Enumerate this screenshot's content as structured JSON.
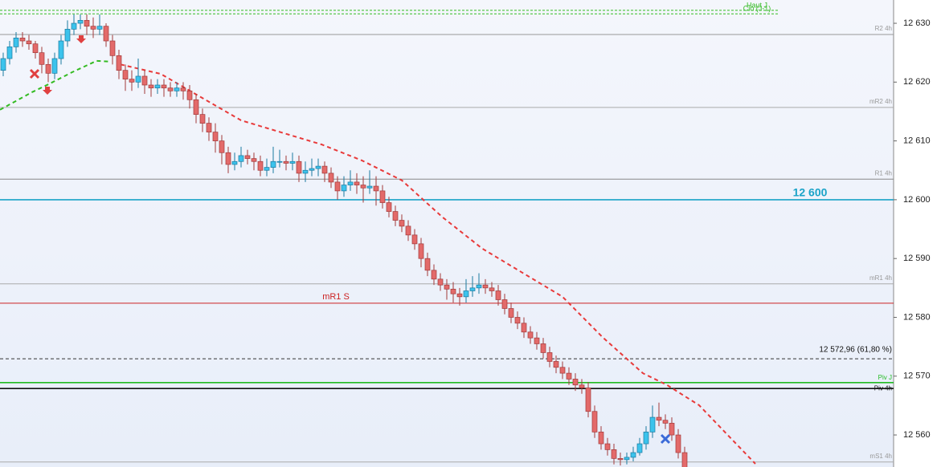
{
  "chart_data": {
    "type": "candlestick",
    "ylim": [
      12554.55,
      12633.96
    ],
    "yticks": [
      {
        "value": 12630,
        "label": "12 630"
      },
      {
        "value": 12620,
        "label": "12 620"
      },
      {
        "value": 12610,
        "label": "12 610"
      },
      {
        "value": 12600,
        "label": "12 600"
      },
      {
        "value": 12590,
        "label": "12 590"
      },
      {
        "value": 12580,
        "label": "12 580"
      },
      {
        "value": 12570,
        "label": "12 570"
      },
      {
        "value": 12560,
        "label": "12 560"
      }
    ],
    "xlim": [
      -0.5,
      145.5
    ],
    "up_color": "#3cc3ec",
    "down_color": "#e36a6a",
    "candles": [
      [
        12622,
        12625,
        12621,
        12624
      ],
      [
        12624,
        12627,
        12623,
        12626
      ],
      [
        12626,
        12628.5,
        12625,
        12627.5
      ],
      [
        12627.5,
        12628.5,
        12626,
        12627
      ],
      [
        12627,
        12628,
        12625.5,
        12626.5
      ],
      [
        12626.5,
        12627,
        12624,
        12625
      ],
      [
        12625,
        12626,
        12621.5,
        12623
      ],
      [
        12623,
        12624,
        12620,
        12621.5
      ],
      [
        12621.5,
        12625,
        12620.5,
        12624
      ],
      [
        12624,
        12628,
        12623,
        12627
      ],
      [
        12627,
        12630.5,
        12626,
        12629
      ],
      [
        12629,
        12631.5,
        12628,
        12630
      ],
      [
        12630,
        12631.5,
        12629,
        12630.5
      ],
      [
        12630.5,
        12631.5,
        12628,
        12629.5
      ],
      [
        12629.5,
        12631,
        12627.5,
        12629
      ],
      [
        12629,
        12631.5,
        12628,
        12629.5
      ],
      [
        12629.5,
        12630,
        12626,
        12627
      ],
      [
        12627,
        12628,
        12623,
        12624.5
      ],
      [
        12624.5,
        12625.5,
        12620.5,
        12622
      ],
      [
        12622,
        12623,
        12618.5,
        12620.5
      ],
      [
        12620.5,
        12622,
        12618.5,
        12620
      ],
      [
        12620,
        12624,
        12619,
        12621
      ],
      [
        12621,
        12622,
        12618,
        12619.5
      ],
      [
        12619.5,
        12620.5,
        12617.5,
        12619
      ],
      [
        12619,
        12620.5,
        12618,
        12619.5
      ],
      [
        12619.5,
        12620.5,
        12617.5,
        12619
      ],
      [
        12619,
        12620,
        12617.5,
        12618.5
      ],
      [
        12618.5,
        12620,
        12617.5,
        12619
      ],
      [
        12619,
        12620,
        12617,
        12618.5
      ],
      [
        12618.5,
        12619.5,
        12615.5,
        12617
      ],
      [
        12617,
        12618,
        12613,
        12614.5
      ],
      [
        12614.5,
        12615.5,
        12611.5,
        12613
      ],
      [
        12613,
        12614,
        12610,
        12611.5
      ],
      [
        12611.5,
        12613,
        12608,
        12610
      ],
      [
        12610,
        12611,
        12606,
        12608
      ],
      [
        12608,
        12609,
        12604.5,
        12606
      ],
      [
        12606,
        12608,
        12605,
        12606.5
      ],
      [
        12606.5,
        12609,
        12605.5,
        12607.5
      ],
      [
        12607.5,
        12608.5,
        12606,
        12607
      ],
      [
        12607,
        12608,
        12605,
        12606.5
      ],
      [
        12606.5,
        12607.5,
        12604,
        12605
      ],
      [
        12605,
        12607,
        12604,
        12605.5
      ],
      [
        12605.5,
        12609,
        12604.5,
        12606.5
      ],
      [
        12606.5,
        12608.5,
        12605.5,
        12606.5
      ],
      [
        12606.5,
        12607.5,
        12605,
        12606.2
      ],
      [
        12606.2,
        12608,
        12605,
        12606.5
      ],
      [
        12606.5,
        12607.5,
        12603,
        12604.5
      ],
      [
        12604.5,
        12606.5,
        12603,
        12605
      ],
      [
        12605,
        12607,
        12604,
        12605.3
      ],
      [
        12605.3,
        12607,
        12604,
        12605.7
      ],
      [
        12605.7,
        12606.5,
        12603,
        12604.5
      ],
      [
        12604.5,
        12605.5,
        12602,
        12603
      ],
      [
        12603,
        12604,
        12600,
        12601.5
      ],
      [
        12601.5,
        12604,
        12600.5,
        12602.5
      ],
      [
        12602.5,
        12605,
        12601.5,
        12603
      ],
      [
        12603,
        12604.5,
        12601,
        12602.5
      ],
      [
        12602.5,
        12604,
        12599.5,
        12602
      ],
      [
        12602,
        12605,
        12601,
        12602.3
      ],
      [
        12602.3,
        12604,
        12599,
        12601.5
      ],
      [
        12601.5,
        12602.5,
        12598.5,
        12599.5
      ],
      [
        12599.5,
        12600.5,
        12597,
        12598
      ],
      [
        12598,
        12599,
        12595.5,
        12596.5
      ],
      [
        12596.5,
        12597.5,
        12594.5,
        12595.5
      ],
      [
        12595.5,
        12596.5,
        12593,
        12594
      ],
      [
        12594,
        12595,
        12591.5,
        12592.5
      ],
      [
        12592.5,
        12593.5,
        12588.5,
        12590
      ],
      [
        12590,
        12591,
        12587,
        12588
      ],
      [
        12588,
        12589,
        12585.5,
        12586.5
      ],
      [
        12586.5,
        12587.5,
        12584.5,
        12585.5
      ],
      [
        12585.5,
        12586.5,
        12583,
        12584.8
      ],
      [
        12584.8,
        12586,
        12582.5,
        12584
      ],
      [
        12584,
        12585,
        12582,
        12583.5
      ],
      [
        12583.5,
        12586.5,
        12582.5,
        12584.5
      ],
      [
        12584.5,
        12587,
        12583.5,
        12585
      ],
      [
        12585,
        12587.5,
        12584,
        12585.5
      ],
      [
        12585.5,
        12586.5,
        12584,
        12585
      ],
      [
        12585,
        12586,
        12583.5,
        12584.5
      ],
      [
        12584.5,
        12585.5,
        12582,
        12583
      ],
      [
        12583,
        12584,
        12580.5,
        12581.5
      ],
      [
        12581.5,
        12582.5,
        12579,
        12580
      ],
      [
        12580,
        12581,
        12578,
        12579
      ],
      [
        12579,
        12580,
        12576.5,
        12577.5
      ],
      [
        12577.5,
        12578.5,
        12575.5,
        12576.5
      ],
      [
        12576.5,
        12577.5,
        12574.5,
        12575.5
      ],
      [
        12575.5,
        12576.5,
        12573,
        12574
      ],
      [
        12574,
        12575,
        12571.5,
        12572.5
      ],
      [
        12572.5,
        12573.5,
        12570.5,
        12571.5
      ],
      [
        12571.5,
        12572.5,
        12569.5,
        12570.5
      ],
      [
        12570.5,
        12571.5,
        12568.5,
        12569.5
      ],
      [
        12569.5,
        12570.5,
        12567.5,
        12568.5
      ],
      [
        12568.5,
        12569.5,
        12567,
        12568
      ],
      [
        12568,
        12569,
        12563,
        12564
      ],
      [
        12564,
        12565,
        12559.5,
        12560.5
      ],
      [
        12560.5,
        12561.5,
        12557.5,
        12558.5
      ],
      [
        12558.5,
        12559.5,
        12556.5,
        12557.5
      ],
      [
        12557.5,
        12558.5,
        12555,
        12556
      ],
      [
        12556,
        12557,
        12554.8,
        12555.8
      ],
      [
        12555.8,
        12557,
        12555,
        12556.2
      ],
      [
        12556.2,
        12558,
        12555.5,
        12557
      ],
      [
        12557,
        12559.5,
        12556.5,
        12558.5
      ],
      [
        12558.5,
        12561.5,
        12557.5,
        12560.5
      ],
      [
        12560.5,
        12565,
        12559.5,
        12563
      ],
      [
        12563,
        12565.5,
        12561.5,
        12562.5
      ],
      [
        12562.5,
        12563.5,
        12561,
        12562
      ],
      [
        12562,
        12563,
        12559,
        12560
      ],
      [
        12560,
        12561,
        12556,
        12557
      ],
      [
        12557,
        12558,
        12553,
        12554
      ]
    ],
    "averages": [
      {
        "color": "#33bb22",
        "x": [
          -0.5,
          4.5,
          7,
          10.75,
          14.5,
          16.4
        ],
        "values": [
          12615.3,
          12618.3,
          12619.6,
          12621.7,
          12623.6,
          12623.5
        ]
      },
      {
        "color": "#e83a3a",
        "x": [
          18.25,
          24.5,
          37,
          49.5,
          55.75,
          62,
          68.25,
          74.5,
          80.75,
          87,
          93.25,
          99.5,
          103.25,
          108.25,
          117
        ],
        "values": [
          12623,
          12621.4,
          12613.5,
          12609.4,
          12606.7,
          12603.3,
          12597.1,
          12591.7,
          12587.6,
          12583.5,
          12576.6,
          12570.5,
          12568.5,
          12565.05,
          12555.1
        ]
      }
    ],
    "levels": [
      {
        "label": "R2 4h",
        "value": 12628.1,
        "color": "#999999",
        "style": "pivot"
      },
      {
        "label": "mR2 4h",
        "value": 12615.7,
        "color": "#aaaaaa",
        "style": "pivot"
      },
      {
        "label": "R1 4h",
        "value": 12603.5,
        "color": "#888888",
        "style": "pivot"
      },
      {
        "label": "12 600",
        "value": 12600,
        "color": "#1aa3c8",
        "style": "round"
      },
      {
        "label": "mR1 4h",
        "value": 12585.7,
        "color": "#aaaaaa",
        "style": "pivot"
      },
      {
        "label": "mR1 S",
        "value": 12582.4,
        "color": "#cc2222",
        "style": "weekly"
      },
      {
        "label": "12 572,96 (61,80 %)",
        "value": 12572.96,
        "color": "#333333",
        "style": "fibo"
      },
      {
        "label": "Piv J",
        "value": 12568.9,
        "color": "#22bb22",
        "style": "daily"
      },
      {
        "label": "Piv 4h",
        "value": 12567.9,
        "color": "#111111",
        "style": "daily"
      },
      {
        "label": "mS1 4h",
        "value": 12555.4,
        "color": "#aaaaaa",
        "style": "pivot"
      },
      {
        "label": "Haut J",
        "value": 12632.2,
        "color": "#33bb22",
        "style": "top"
      },
      {
        "label": "Clo (J-1)",
        "value": 12631.6,
        "color": "#33bb22",
        "style": "top"
      }
    ]
  }
}
